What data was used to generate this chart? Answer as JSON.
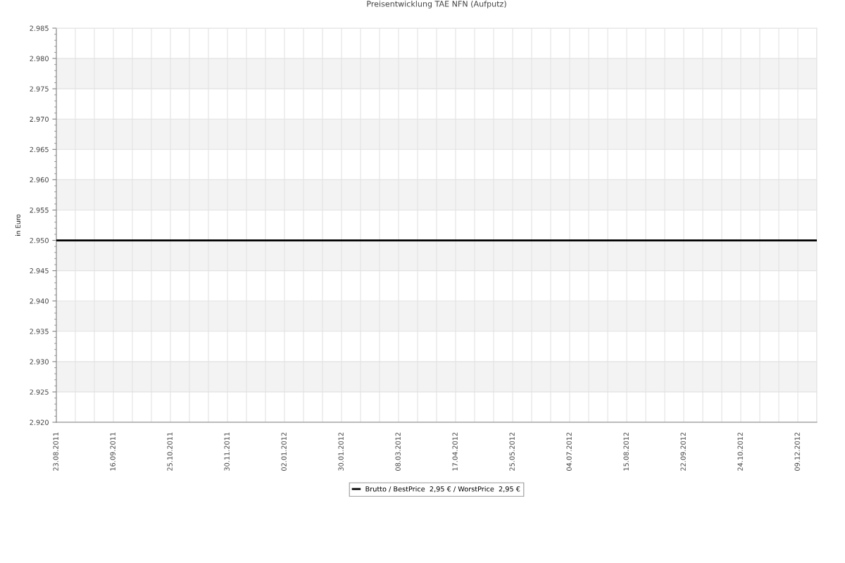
{
  "chart_data": {
    "type": "line",
    "title": "Preisentwicklung TAE NFN (Aufputz)",
    "ylabel": "in Euro",
    "categories": [
      "23.08.2011",
      null,
      null,
      "16.09.2011",
      null,
      null,
      "25.10.2011",
      null,
      null,
      "30.11.2011",
      null,
      null,
      "02.01.2012",
      null,
      null,
      "30.01.2012",
      null,
      null,
      "08.03.2012",
      null,
      null,
      "17.04.2012",
      null,
      null,
      "25.05.2012",
      null,
      null,
      "04.07.2012",
      null,
      null,
      "15.08.2012",
      null,
      null,
      "22.09.2012",
      null,
      null,
      "24.10.2012",
      null,
      null,
      "09.12.2012",
      null
    ],
    "series": [
      {
        "name": "Brutto / BestPrice  2,95 € / WorstPrice  2,95 €",
        "color": "#000000",
        "values": [
          2.95,
          2.95,
          2.95,
          2.95,
          2.95,
          2.95,
          2.95,
          2.95,
          2.95,
          2.95,
          2.95,
          2.95,
          2.95,
          2.95,
          2.95,
          2.95,
          2.95,
          2.95,
          2.95,
          2.95,
          2.95,
          2.95,
          2.95,
          2.95,
          2.95,
          2.95,
          2.95,
          2.95,
          2.95,
          2.95,
          2.95,
          2.95,
          2.95,
          2.95,
          2.95,
          2.95,
          2.95,
          2.95,
          2.95,
          2.95,
          2.95
        ]
      }
    ],
    "ylim": [
      2.92,
      2.985
    ],
    "yticks": [
      {
        "value": 2.92,
        "label": "2.920"
      },
      2.925,
      {
        "value": 2.93,
        "label": "2.930"
      },
      2.935,
      {
        "value": 2.94,
        "label": "2.940"
      },
      2.945,
      {
        "value": 2.95,
        "label": "2.950"
      },
      2.955,
      {
        "value": 2.96,
        "label": "2.960"
      },
      2.965,
      {
        "value": 2.97,
        "label": "2.970"
      },
      2.975,
      {
        "value": 2.98,
        "label": "2.980"
      },
      2.985
    ],
    "grid": true,
    "legend": "bottom"
  }
}
